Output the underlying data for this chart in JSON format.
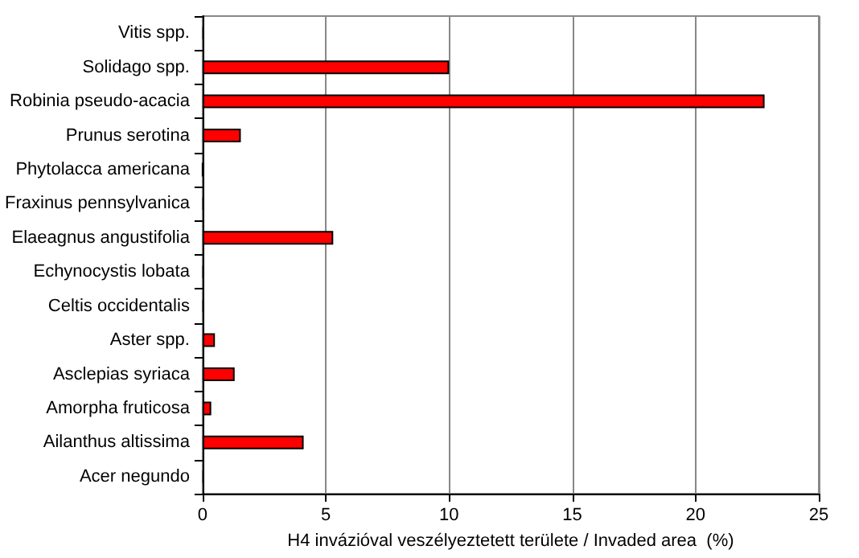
{
  "chart_data": {
    "type": "bar",
    "orientation": "horizontal",
    "xlabel": "H4 invázióval veszélyeztetett területe / Invaded area  (%)",
    "categories": [
      "Vitis spp.",
      "Solidago spp.",
      "Robinia pseudo-acacia",
      "Prunus serotina",
      "Phytolacca americana",
      "Fraxinus pennsylvanica",
      "Elaeagnus angustifolia",
      "Echynocystis lobata",
      "Celtis occidentalis",
      "Aster spp.",
      "Asclepias syriaca",
      "Amorpha fruticosa",
      "Ailanthus altissima",
      "Acer negundo"
    ],
    "values": [
      0.05,
      10,
      22.8,
      1.55,
      0,
      0.05,
      5.3,
      0.05,
      0.05,
      0.5,
      1.3,
      0.35,
      4.1,
      0.05
    ],
    "color": "#ff0000",
    "xlim": [
      0,
      25
    ],
    "xticks": [
      0,
      5,
      10,
      15,
      20,
      25
    ],
    "grid": "x"
  }
}
